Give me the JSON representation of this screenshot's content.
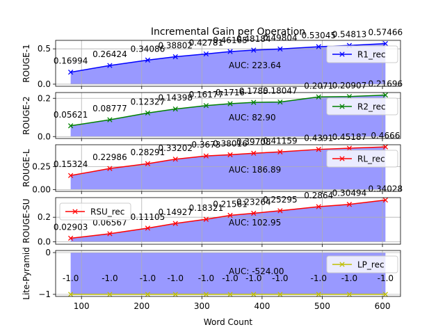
{
  "chart_data": [
    {
      "type": "line",
      "title": "Incremental Gain per Operation",
      "ylabel": "ROUGE-1",
      "xlabel": "",
      "x": [
        82,
        147,
        210,
        256,
        307,
        347,
        386,
        430,
        494,
        545,
        605
      ],
      "series": [
        {
          "name": "R1_rec",
          "color": "#0000ff",
          "values": [
            0.16994,
            0.26424,
            0.34086,
            0.38802,
            0.42781,
            0.46165,
            0.48184,
            0.49804,
            0.53045,
            0.54813,
            0.57466
          ],
          "labels": [
            "0.16994",
            "0.26424",
            "0.34086",
            "0.38802",
            "0.42781",
            "0.46165",
            "0.48184",
            "0.49804",
            "0.53045",
            "0.54813",
            "0.57466"
          ]
        }
      ],
      "auc_label": "AUC: 223.64",
      "ylim": [
        -0.03,
        0.62
      ],
      "yticks": [
        0.0,
        0.5
      ],
      "ytick_labels": [
        "0.0",
        "0.5"
      ],
      "legend": "right",
      "grid": true
    },
    {
      "type": "line",
      "ylabel": "ROUGE-2",
      "x": [
        82,
        147,
        210,
        256,
        307,
        347,
        386,
        430,
        494,
        545,
        605
      ],
      "series": [
        {
          "name": "R2_rec",
          "color": "#008000",
          "values": [
            0.05621,
            0.08777,
            0.12327,
            0.14398,
            0.16177,
            0.1716,
            0.1785,
            0.18047,
            0.2071,
            0.20907,
            0.21696
          ],
          "labels": [
            "0.05621",
            "0.08777",
            "0.12327",
            "0.14398",
            "0.16177",
            "0.1716",
            "0.1785",
            "0.18047",
            "0.2071",
            "0.20907",
            "0.21696"
          ]
        }
      ],
      "auc_label": "AUC: 82.90",
      "ylim": [
        -0.01,
        0.23
      ],
      "yticks": [
        0.0,
        0.2
      ],
      "ytick_labels": [
        "0.0",
        "0.2"
      ],
      "legend": "right",
      "grid": true
    },
    {
      "type": "line",
      "ylabel": "ROUGE-L",
      "x": [
        82,
        147,
        210,
        256,
        307,
        347,
        386,
        430,
        494,
        545,
        605
      ],
      "series": [
        {
          "name": "RL_rec",
          "color": "#ff0000",
          "values": [
            0.15324,
            0.22986,
            0.28291,
            0.33202,
            0.3673,
            0.38016,
            0.39708,
            0.41159,
            0.4391,
            0.45187,
            0.4666
          ],
          "labels": [
            "0.15324",
            "0.22986",
            "0.28291",
            "0.33202",
            "0.3673",
            "0.38016",
            "0.39708",
            "0.41159",
            "0.4391",
            "0.45187",
            "0.4666"
          ]
        }
      ],
      "auc_label": "AUC: 186.89",
      "ylim": [
        -0.02,
        0.49
      ],
      "yticks": [
        0.0,
        0.25
      ],
      "ytick_labels": [
        "0.00",
        "0.25"
      ],
      "legend": "right",
      "grid": true
    },
    {
      "type": "line",
      "ylabel": "ROUGE-SU",
      "x": [
        82,
        147,
        210,
        256,
        307,
        347,
        386,
        430,
        494,
        545,
        605
      ],
      "series": [
        {
          "name": "RSU_rec",
          "color": "#ff0000",
          "values": [
            0.02903,
            0.06567,
            0.11105,
            0.14927,
            0.18321,
            0.21561,
            0.23264,
            0.25295,
            0.2864,
            0.30494,
            0.34028
          ],
          "labels": [
            "0.02903",
            "0.06567",
            "0.11105",
            "0.14927",
            "0.18321",
            "0.21561",
            "0.23264",
            "0.25295",
            "0.2864",
            "0.30494",
            "0.34028"
          ]
        }
      ],
      "auc_label": "AUC: 102.95",
      "ylim": [
        -0.02,
        0.36
      ],
      "yticks": [
        0.0,
        0.2
      ],
      "ytick_labels": [
        "0.0",
        "0.2"
      ],
      "legend": "left",
      "grid": true
    },
    {
      "type": "line",
      "ylabel": "Lite-Pyramid",
      "xlabel": "Word Count",
      "x": [
        82,
        147,
        210,
        256,
        307,
        347,
        386,
        430,
        494,
        545,
        605
      ],
      "series": [
        {
          "name": "LP_rec",
          "color": "#bfbf00",
          "values": [
            -1.0,
            -1.0,
            -1.0,
            -1.0,
            -1.0,
            -1.0,
            -1.0,
            -1.0,
            -1.0,
            -1.0,
            -1.0
          ],
          "labels": [
            "-1.0",
            "-1.0",
            "-1.0",
            "-1.0",
            "-1.0",
            "-1.0",
            "-1.0",
            "-1.0",
            "-1.0",
            "-1.0",
            "-1.0"
          ]
        }
      ],
      "auc_label": "AUC: -524.00",
      "ylim": [
        -1.05,
        0.05
      ],
      "yticks": [
        -1,
        0
      ],
      "ytick_labels": [
        "−1",
        "0"
      ],
      "xticks": [
        100,
        200,
        300,
        400,
        500,
        600
      ],
      "xtick_labels": [
        "100",
        "200",
        "300",
        "400",
        "500",
        "600"
      ],
      "xlim": [
        57,
        630
      ],
      "legend": "right",
      "grid": true
    }
  ]
}
